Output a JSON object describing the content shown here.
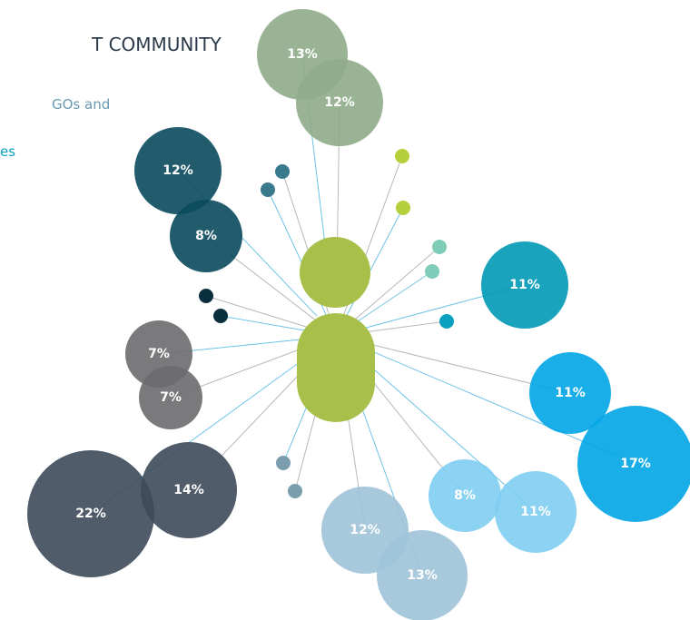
{
  "header": {
    "title": "T COMMUNITY",
    "line1": "GOs and",
    "line2": "es"
  },
  "bubbles": [
    {
      "label": "13%"
    },
    {
      "label": "12%"
    },
    {
      "label": "12%"
    },
    {
      "label": "8%"
    },
    {
      "label": "7%"
    },
    {
      "label": "7%"
    },
    {
      "label": "22%"
    },
    {
      "label": "14%"
    },
    {
      "label": "11%"
    },
    {
      "label": "11%"
    },
    {
      "label": "17%"
    },
    {
      "label": "8%"
    },
    {
      "label": "11%"
    },
    {
      "label": "12%"
    },
    {
      "label": "13%"
    }
  ]
}
